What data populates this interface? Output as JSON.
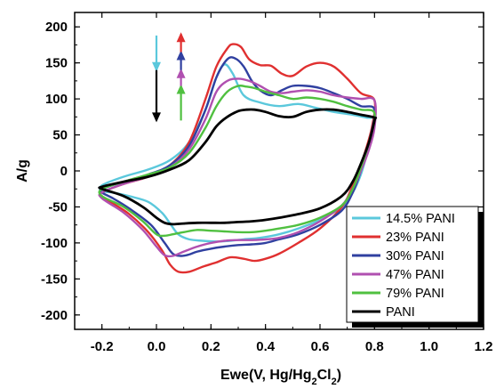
{
  "chart_data": {
    "type": "line",
    "xlabel": "Ewe(V, Hg/Hg₂Cl₂)",
    "ylabel": "A/g",
    "xlim": [
      -0.3,
      1.2
    ],
    "ylim": [
      -220,
      220
    ],
    "xticks": [
      "-0.2",
      "0.0",
      "0.2",
      "0.4",
      "0.6",
      "0.8",
      "1.0",
      "1.2"
    ],
    "yticks": [
      "200",
      "150",
      "100",
      "50",
      "0",
      "-50",
      "-100",
      "-150",
      "-200"
    ],
    "legend_position": "bottom-right",
    "grid": false,
    "series": [
      {
        "name": "14.5% PANI",
        "color": "#5bc8dc",
        "x": [
          -0.2,
          -0.12,
          -0.03,
          0.05,
          0.12,
          0.18,
          0.22,
          0.25,
          0.28,
          0.32,
          0.38,
          0.45,
          0.52,
          0.58,
          0.65,
          0.72,
          0.77,
          0.8,
          0.78,
          0.75,
          0.72,
          0.68,
          0.6,
          0.52,
          0.45,
          0.38,
          0.32,
          0.27,
          0.22,
          0.17,
          0.12,
          0.08,
          0.05,
          0.02,
          -0.03,
          -0.1,
          -0.16,
          -0.2
        ],
        "y": [
          -20,
          -8,
          2,
          15,
          40,
          85,
          130,
          148,
          135,
          105,
          95,
          90,
          93,
          88,
          82,
          78,
          74,
          70,
          35,
          -5,
          -30,
          -50,
          -68,
          -80,
          -88,
          -93,
          -95,
          -97,
          -98,
          -97,
          -95,
          -88,
          -73,
          -58,
          -43,
          -35,
          -30,
          -28
        ]
      },
      {
        "name": "23% PANI",
        "color": "#e03030",
        "x": [
          -0.2,
          -0.12,
          -0.03,
          0.05,
          0.12,
          0.18,
          0.22,
          0.26,
          0.28,
          0.31,
          0.34,
          0.38,
          0.42,
          0.46,
          0.5,
          0.55,
          0.6,
          0.65,
          0.7,
          0.75,
          0.8,
          0.79,
          0.76,
          0.72,
          0.68,
          0.6,
          0.52,
          0.45,
          0.4,
          0.36,
          0.32,
          0.27,
          0.22,
          0.17,
          0.12,
          0.08,
          0.05,
          0.02,
          -0.03,
          -0.1,
          -0.16,
          -0.2
        ],
        "y": [
          -30,
          -18,
          -8,
          8,
          40,
          100,
          145,
          170,
          176,
          172,
          155,
          147,
          146,
          135,
          132,
          145,
          150,
          145,
          128,
          108,
          98,
          60,
          20,
          -20,
          -50,
          -80,
          -100,
          -115,
          -122,
          -125,
          -122,
          -120,
          -127,
          -133,
          -140,
          -140,
          -130,
          -110,
          -85,
          -60,
          -45,
          -35
        ]
      },
      {
        "name": "30% PANI",
        "color": "#3040a0",
        "x": [
          -0.2,
          -0.12,
          -0.03,
          0.05,
          0.12,
          0.18,
          0.22,
          0.26,
          0.29,
          0.32,
          0.35,
          0.38,
          0.42,
          0.46,
          0.5,
          0.55,
          0.6,
          0.65,
          0.7,
          0.75,
          0.8,
          0.78,
          0.75,
          0.72,
          0.68,
          0.6,
          0.52,
          0.45,
          0.4,
          0.35,
          0.3,
          0.25,
          0.2,
          0.15,
          0.12,
          0.09,
          0.06,
          0.03,
          -0.02,
          -0.1,
          -0.16,
          -0.2
        ],
        "y": [
          -25,
          -15,
          -5,
          8,
          35,
          85,
          130,
          155,
          156,
          145,
          125,
          112,
          105,
          112,
          118,
          118,
          115,
          108,
          100,
          90,
          85,
          40,
          0,
          -30,
          -55,
          -75,
          -88,
          -95,
          -100,
          -102,
          -103,
          -105,
          -108,
          -112,
          -116,
          -118,
          -115,
          -100,
          -75,
          -52,
          -38,
          -30
        ]
      },
      {
        "name": "47% PANI",
        "color": "#b050b0",
        "x": [
          -0.2,
          -0.12,
          -0.03,
          0.05,
          0.12,
          0.18,
          0.22,
          0.26,
          0.3,
          0.34,
          0.38,
          0.42,
          0.46,
          0.5,
          0.55,
          0.6,
          0.65,
          0.7,
          0.75,
          0.8,
          0.8,
          0.78,
          0.75,
          0.72,
          0.68,
          0.6,
          0.52,
          0.45,
          0.4,
          0.35,
          0.3,
          0.25,
          0.2,
          0.15,
          0.1,
          0.06,
          0.03,
          0.0,
          -0.05,
          -0.12,
          -0.2
        ],
        "y": [
          -30,
          -18,
          -8,
          5,
          30,
          72,
          110,
          125,
          128,
          125,
          118,
          110,
          108,
          110,
          112,
          110,
          105,
          102,
          100,
          98,
          60,
          30,
          0,
          -25,
          -48,
          -70,
          -85,
          -93,
          -95,
          -96,
          -96,
          -97,
          -100,
          -105,
          -112,
          -118,
          -117,
          -105,
          -82,
          -58,
          -38
        ]
      },
      {
        "name": "79% PANI",
        "color": "#50c040",
        "x": [
          -0.2,
          -0.12,
          -0.03,
          0.05,
          0.12,
          0.18,
          0.22,
          0.26,
          0.3,
          0.33,
          0.36,
          0.4,
          0.45,
          0.5,
          0.55,
          0.6,
          0.65,
          0.7,
          0.75,
          0.8,
          0.78,
          0.75,
          0.72,
          0.68,
          0.6,
          0.52,
          0.45,
          0.4,
          0.35,
          0.3,
          0.25,
          0.2,
          0.15,
          0.1,
          0.06,
          0.03,
          0.0,
          -0.05,
          -0.12,
          -0.2
        ],
        "y": [
          -25,
          -15,
          -5,
          5,
          25,
          60,
          90,
          110,
          118,
          117,
          115,
          110,
          105,
          100,
          102,
          100,
          96,
          90,
          85,
          80,
          40,
          5,
          -25,
          -48,
          -65,
          -75,
          -80,
          -83,
          -85,
          -85,
          -84,
          -83,
          -82,
          -85,
          -88,
          -90,
          -88,
          -70,
          -50,
          -35
        ]
      },
      {
        "name": "PANI",
        "color": "#000000",
        "x": [
          -0.2,
          -0.12,
          -0.03,
          0.05,
          0.12,
          0.18,
          0.22,
          0.26,
          0.3,
          0.33,
          0.36,
          0.4,
          0.45,
          0.5,
          0.55,
          0.6,
          0.65,
          0.7,
          0.75,
          0.8,
          0.8,
          0.78,
          0.75,
          0.72,
          0.68,
          0.6,
          0.52,
          0.45,
          0.4,
          0.35,
          0.3,
          0.25,
          0.2,
          0.15,
          0.1,
          0.06,
          0.03,
          0.0,
          -0.05,
          -0.12,
          -0.2
        ],
        "y": [
          -22,
          -15,
          -8,
          2,
          15,
          40,
          62,
          75,
          83,
          85,
          85,
          82,
          76,
          75,
          82,
          85,
          85,
          82,
          78,
          74,
          70,
          40,
          10,
          -15,
          -35,
          -52,
          -60,
          -65,
          -68,
          -70,
          -71,
          -72,
          -72,
          -72,
          -73,
          -74,
          -72,
          -65,
          -50,
          -35,
          -25
        ]
      }
    ],
    "annotations": [
      {
        "color": "#5bc8dc",
        "direction": "down",
        "x": 0.0,
        "y_from": 188,
        "y_to": 140
      },
      {
        "color": "#000000",
        "direction": "down",
        "x": 0.0,
        "y_from": 140,
        "y_to": 70
      },
      {
        "color": "#50c040",
        "direction": "up",
        "x": 0.09,
        "y_from": 70,
        "y_to": 118
      },
      {
        "color": "#b050b0",
        "direction": "up",
        "x": 0.09,
        "y_from": 118,
        "y_to": 140
      },
      {
        "color": "#3040a0",
        "direction": "up",
        "x": 0.09,
        "y_from": 140,
        "y_to": 165
      },
      {
        "color": "#e03030",
        "direction": "up",
        "x": 0.09,
        "y_from": 165,
        "y_to": 190
      }
    ]
  }
}
